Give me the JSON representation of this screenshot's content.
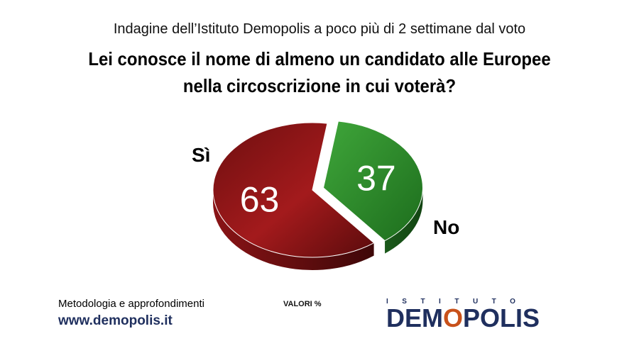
{
  "header": {
    "subtitle": "Indagine dell’Istituto Demopolis a poco più di 2 settimane dal voto",
    "title": "Lei conosce il nome di almeno un candidato alle Europee nella circoscrizione in cui voterà?"
  },
  "chart_data": {
    "type": "pie",
    "title": "Lei conosce il nome di almeno un candidato alle Europee nella circoscrizione in cui voterà?",
    "unit_note": "VALORI %",
    "slices": [
      {
        "label": "Sì",
        "value": 37,
        "color": "#2a8a2a"
      },
      {
        "label": "No",
        "value": 63,
        "color": "#9e1a1a"
      }
    ],
    "exploded_slice": "Sì",
    "style": "3d"
  },
  "footer": {
    "methodology": "Metodologia e approfondimenti",
    "website": "www.demopolis.it",
    "logo_top": "ISTITUTO",
    "logo_main_part1": "DEM",
    "logo_main_o": "O",
    "logo_main_part2": "POLIS",
    "logo_color": "#1f2f5e",
    "logo_accent": "#c8511a"
  }
}
